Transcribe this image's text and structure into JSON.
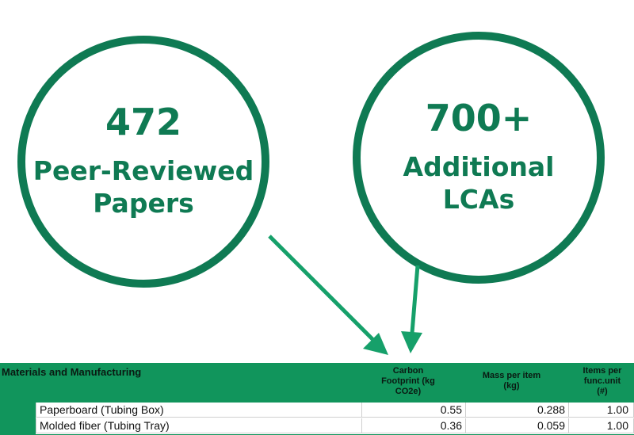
{
  "stats": [
    {
      "number": "472",
      "line1": "Peer-Reviewed",
      "line2": "Papers"
    },
    {
      "number": "700+",
      "line1": "Additional",
      "line2": "LCAs"
    }
  ],
  "table": {
    "section_title": "Materials and Manufacturing",
    "columns": [
      {
        "l1": "Carbon",
        "l2": "Footprint (kg",
        "l3": "CO2e)"
      },
      {
        "l1": "Mass per item",
        "l2": "(kg)"
      },
      {
        "l1": "Items per",
        "l2": "func.unit",
        "l3": "(#)"
      }
    ],
    "rows": [
      {
        "name": "Paperboard (Tubing Box)",
        "carbon": "0.55",
        "mass": "0.288",
        "items": "1.00"
      },
      {
        "name": "Molded fiber (Tubing Tray)",
        "carbon": "0.36",
        "mass": "0.059",
        "items": "1.00"
      }
    ]
  },
  "colors": {
    "accent": "#0f7a53",
    "arrow": "#16a06a",
    "table_band": "#11955c"
  }
}
